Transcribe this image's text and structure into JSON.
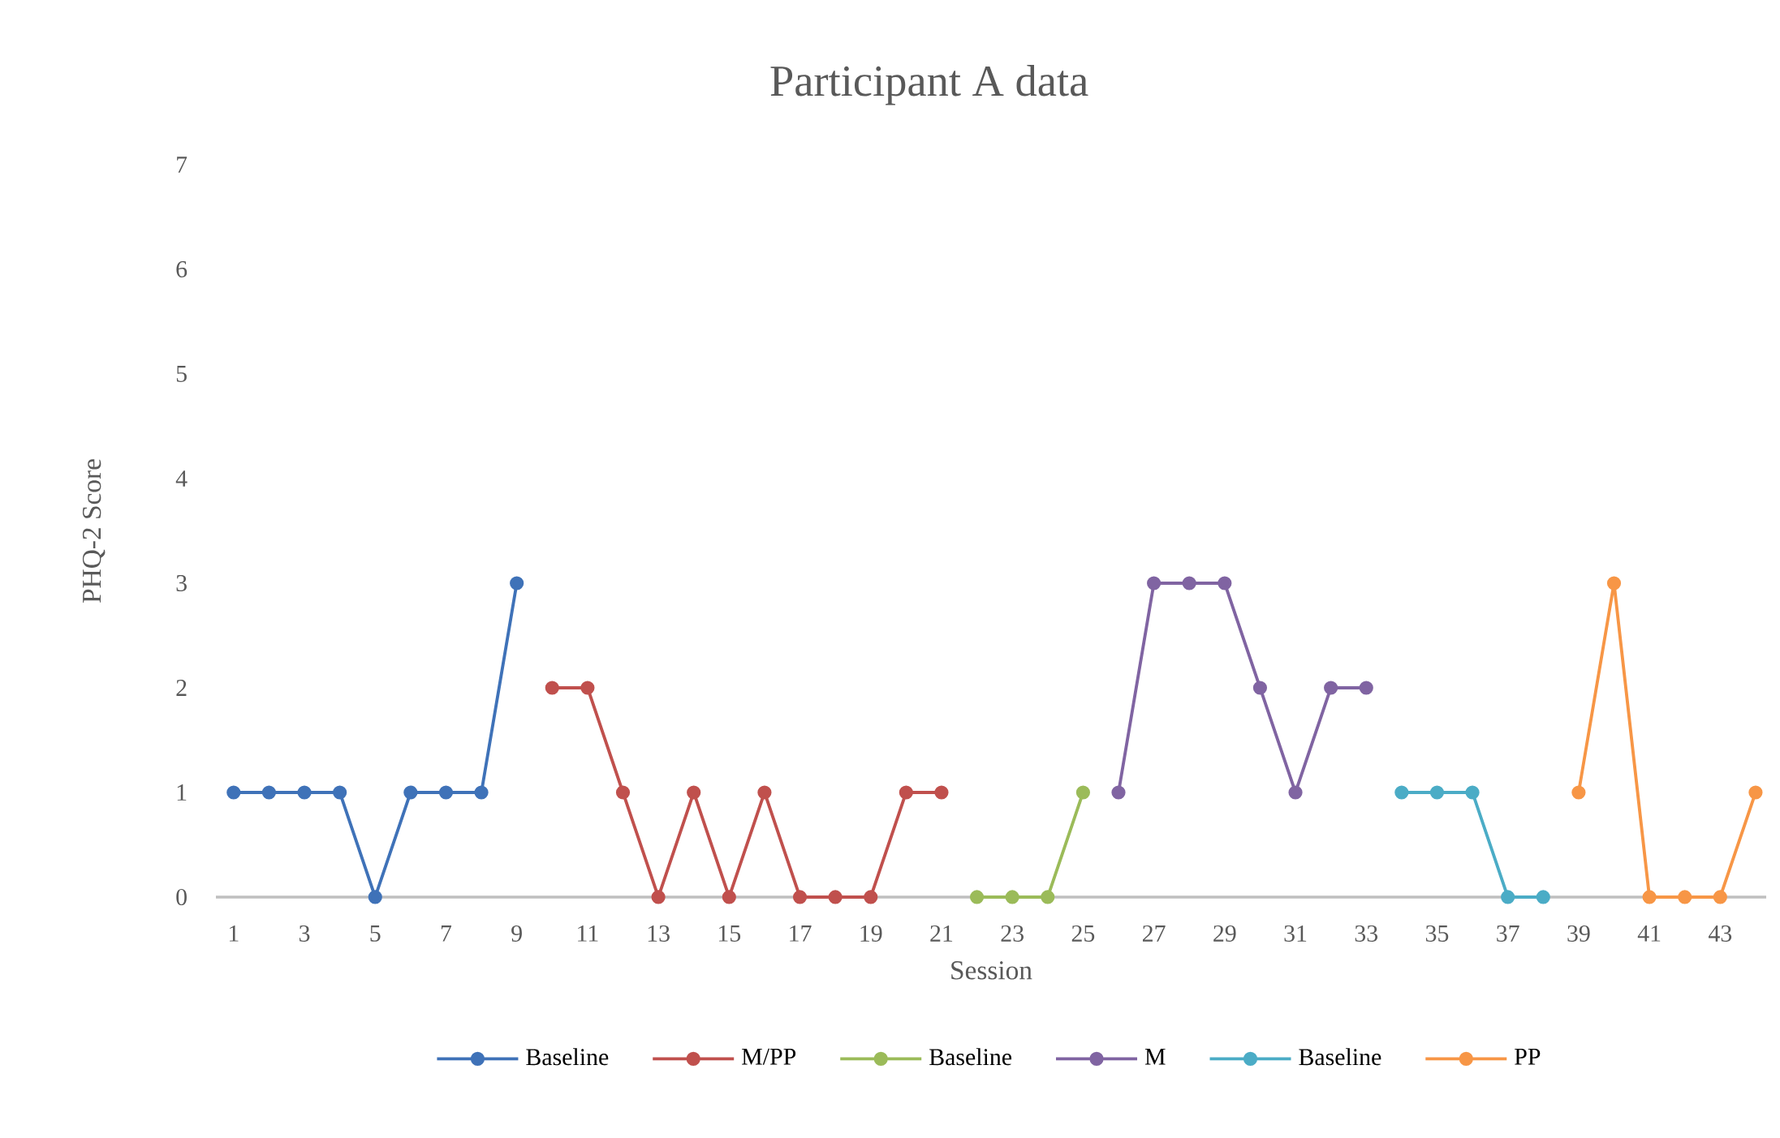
{
  "chart_data": {
    "type": "line",
    "title": "Participant A data",
    "xlabel": "Session",
    "ylabel": "PHQ-2 Score",
    "xlim": [
      0.5,
      44.3
    ],
    "xticks": [
      1,
      3,
      5,
      7,
      9,
      11,
      13,
      15,
      17,
      19,
      21,
      23,
      25,
      27,
      29,
      31,
      33,
      35,
      37,
      39,
      41,
      43
    ],
    "ylim": [
      0,
      7
    ],
    "yticks": [
      0,
      1,
      2,
      3,
      4,
      5,
      6,
      7
    ],
    "grid": false,
    "legend": "bottom",
    "marker": "circle",
    "line_style": "solid",
    "series": [
      {
        "name": "Baseline",
        "color": "#3f72b8",
        "x": [
          1,
          2,
          3,
          4,
          5,
          6,
          7,
          8,
          9
        ],
        "values": [
          1,
          1,
          1,
          1,
          0,
          1,
          1,
          1,
          3
        ]
      },
      {
        "name": "M/PP",
        "color": "#c0504d",
        "x": [
          10,
          11,
          12,
          13,
          14,
          15,
          16,
          17,
          18,
          19,
          20,
          21
        ],
        "values": [
          2,
          2,
          1,
          0,
          1,
          0,
          1,
          0,
          0,
          0,
          1,
          1
        ]
      },
      {
        "name": "Baseline",
        "color": "#9bbb59",
        "x": [
          22,
          23,
          24,
          25
        ],
        "values": [
          0,
          0,
          0,
          1
        ]
      },
      {
        "name": "M",
        "color": "#8064a2",
        "x": [
          26,
          27,
          28,
          29,
          30,
          31,
          32,
          33
        ],
        "values": [
          1,
          3,
          3,
          3,
          2,
          1,
          2,
          2
        ]
      },
      {
        "name": "Baseline",
        "color": "#4bacc6",
        "x": [
          34,
          35,
          36,
          37,
          38
        ],
        "values": [
          1,
          1,
          1,
          0,
          0
        ]
      },
      {
        "name": "PP",
        "color": "#f79646",
        "x": [
          39,
          40,
          41,
          42,
          43,
          44
        ],
        "values": [
          1,
          3,
          0,
          0,
          0,
          1
        ]
      }
    ]
  }
}
